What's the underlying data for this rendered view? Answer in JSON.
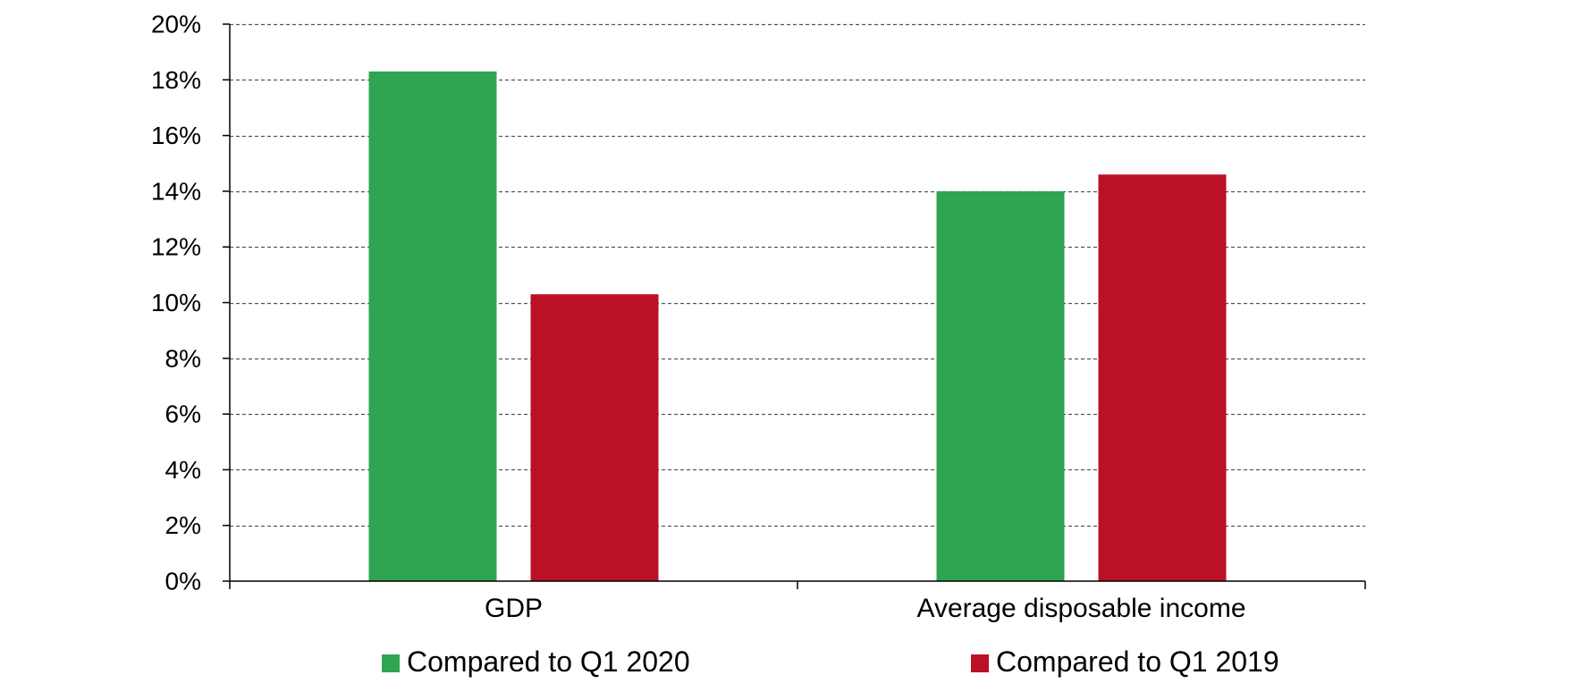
{
  "chart_data": {
    "type": "bar",
    "title": "",
    "xlabel": "",
    "ylabel": "",
    "categories": [
      "GDP",
      "Average disposable income"
    ],
    "series": [
      {
        "name": "Compared to Q1 2020",
        "values": [
          18.3,
          14.0
        ],
        "color": "#2fa451"
      },
      {
        "name": "Compared to Q1 2019",
        "values": [
          10.3,
          14.6
        ],
        "color": "#bb1126"
      }
    ],
    "ylim": [
      0,
      20
    ],
    "yticks": [
      0,
      2,
      4,
      6,
      8,
      10,
      12,
      14,
      16,
      18,
      20
    ],
    "ytick_labels": [
      "0%",
      "2%",
      "4%",
      "6%",
      "8%",
      "10%",
      "12%",
      "14%",
      "16%",
      "18%",
      "20%"
    ],
    "grid": true,
    "grid_style": "dashed",
    "legend_position": "bottom"
  }
}
